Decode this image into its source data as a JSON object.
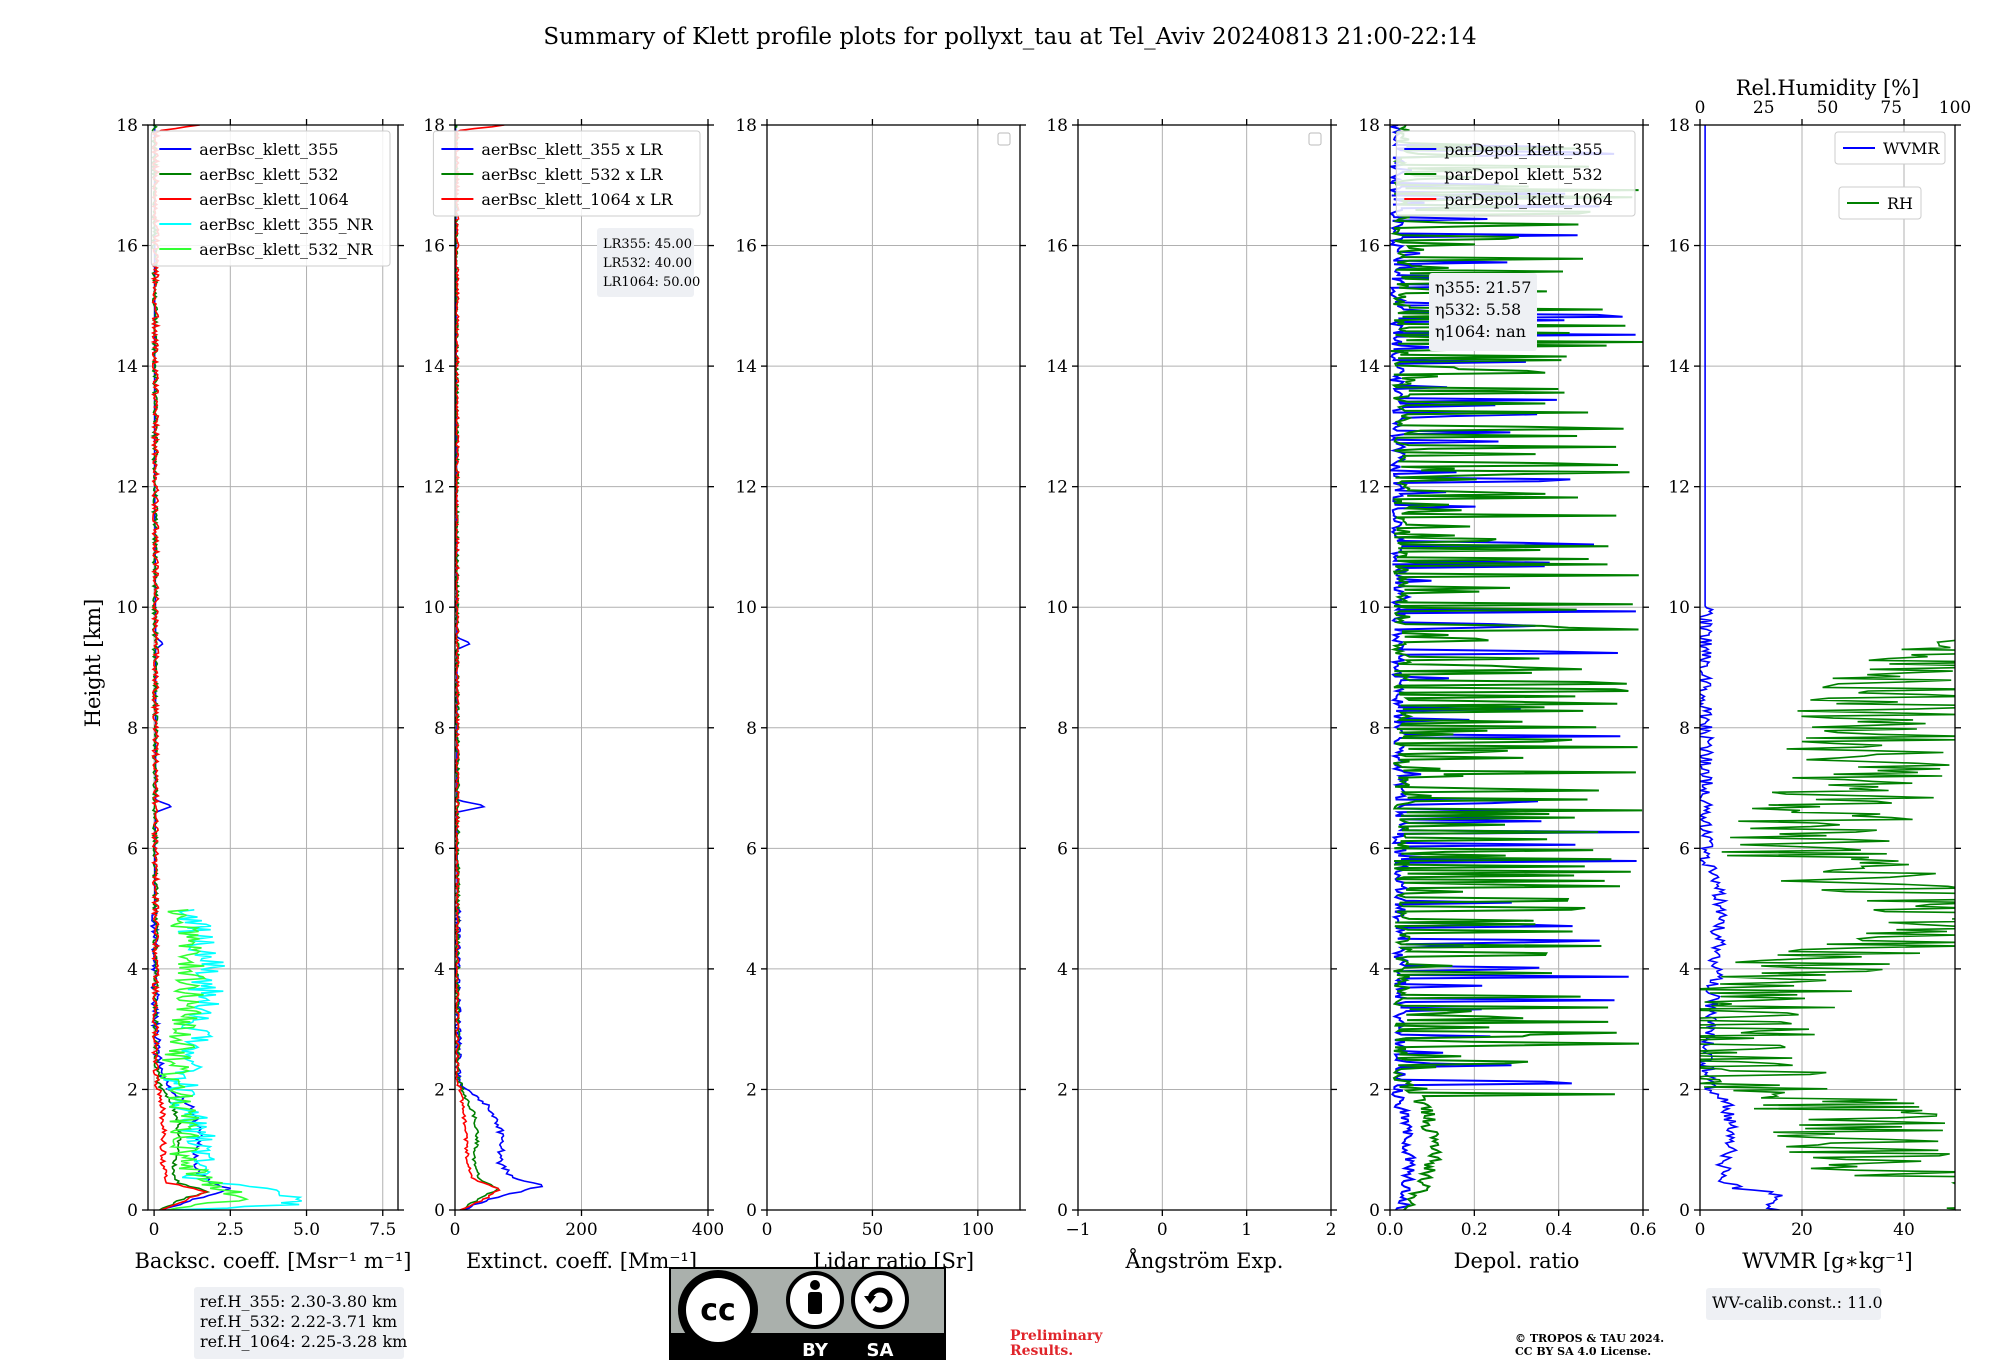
{
  "title": "Summary of Klett profile plots for pollyxt_tau at Tel_Aviv 20240813 21:00-22:14",
  "ylabel": "Height [km]",
  "chart_data": [
    {
      "type": "line",
      "id": "bsc",
      "xlabel": "Backsc. coeff. [Msr$^{-1}$ m$^{-1}$]",
      "xlabel_display": "Backsc. coeff. [Msr⁻¹ m⁻¹]",
      "xlim": [
        -0.2,
        8.0
      ],
      "xticks": [
        0,
        2.5,
        5.0,
        7.5
      ],
      "xticklabels": [
        "0",
        "2.5",
        "5.0",
        "7.5"
      ],
      "ylim": [
        0,
        18
      ],
      "grid": true,
      "legend_position": "top-right",
      "annotation": [
        "ref.H_355: 2.30-3.80 km",
        "ref.H_532: 2.22-3.71 km",
        "ref.H_1064: 2.25-3.28 km"
      ],
      "series": [
        {
          "name": "aerBsc_klett_355",
          "color": "#0000ff",
          "kind": "noisy",
          "profile": [
            [
              0,
              0.3
            ],
            [
              0.1,
              0.8
            ],
            [
              0.25,
              1.8
            ],
            [
              0.35,
              2.5
            ],
            [
              0.45,
              1.9
            ],
            [
              0.6,
              1.5
            ],
            [
              0.8,
              1.3
            ],
            [
              1.0,
              1.4
            ],
            [
              1.3,
              1.5
            ],
            [
              1.6,
              1.3
            ],
            [
              1.8,
              1.1
            ],
            [
              2.0,
              0.5
            ],
            [
              2.2,
              0.3
            ],
            [
              2.5,
              0.15
            ],
            [
              3.0,
              0.05
            ],
            [
              4.0,
              0.03
            ],
            [
              6.0,
              0.02
            ],
            [
              6.6,
              0.05
            ],
            [
              6.7,
              0.6
            ],
            [
              6.8,
              0.05
            ],
            [
              9.3,
              0.05
            ],
            [
              9.4,
              0.3
            ],
            [
              9.5,
              0.05
            ],
            [
              12,
              0.02
            ],
            [
              18,
              0.02
            ]
          ],
          "noise": 0.12,
          "noise_until": 5
        },
        {
          "name": "aerBsc_klett_532",
          "color": "#008000",
          "kind": "noisy",
          "profile": [
            [
              0,
              0.2
            ],
            [
              0.2,
              1.0
            ],
            [
              0.3,
              1.8
            ],
            [
              0.45,
              0.8
            ],
            [
              0.6,
              0.6
            ],
            [
              1.0,
              0.8
            ],
            [
              1.5,
              0.8
            ],
            [
              1.9,
              0.4
            ],
            [
              2.1,
              0.15
            ],
            [
              2.5,
              0.05
            ],
            [
              18,
              0.02
            ]
          ],
          "noise": 0.08,
          "noise_until": 18
        },
        {
          "name": "aerBsc_klett_1064",
          "color": "#ff0000",
          "kind": "noisy",
          "profile": [
            [
              0,
              0.2
            ],
            [
              0.2,
              1.2
            ],
            [
              0.3,
              1.8
            ],
            [
              0.45,
              0.5
            ],
            [
              0.7,
              0.3
            ],
            [
              1.5,
              0.3
            ],
            [
              1.9,
              0.2
            ],
            [
              2.2,
              0.05
            ],
            [
              17.9,
              0.05
            ],
            [
              18,
              1.5
            ]
          ],
          "noise": 0.1,
          "noise_until": 18
        },
        {
          "name": "aerBsc_klett_355_NR",
          "color": "#00ffff",
          "kind": "noisy",
          "profile": [
            [
              0,
              1.0
            ],
            [
              0.1,
              4.8
            ],
            [
              0.3,
              4.0
            ],
            [
              0.5,
              1.5
            ],
            [
              0.8,
              1.5
            ],
            [
              1.3,
              1.4
            ],
            [
              1.8,
              1.0
            ],
            [
              2.2,
              0.8
            ],
            [
              3.0,
              1.5
            ],
            [
              4.0,
              1.8
            ],
            [
              4.5,
              1.5
            ],
            [
              5.0,
              1.0
            ]
          ],
          "noise": 0.6,
          "noise_until": 5
        },
        {
          "name": "aerBsc_klett_532_NR",
          "color": "#33ff33",
          "kind": "noisy",
          "profile": [
            [
              0,
              0.8
            ],
            [
              0.2,
              3.0
            ],
            [
              0.4,
              2.0
            ],
            [
              0.8,
              1.0
            ],
            [
              1.5,
              1.0
            ],
            [
              2.2,
              0.6
            ],
            [
              3.0,
              1.0
            ],
            [
              4.0,
              1.3
            ],
            [
              5.0,
              0.8
            ]
          ],
          "noise": 0.5,
          "noise_until": 5
        }
      ]
    },
    {
      "type": "line",
      "id": "ext",
      "xlabel": "Extinct. coeff. [Mm$^{-1}$]",
      "xlabel_display": "Extinct. coeff. [Mm⁻¹]",
      "xlim": [
        0,
        400
      ],
      "xticks": [
        0,
        200,
        400
      ],
      "xticklabels": [
        "0",
        "200",
        "400"
      ],
      "ylim": [
        0,
        18
      ],
      "grid": true,
      "legend_position": "top-right",
      "annotation": [
        "LR355: 45.00",
        "LR532: 40.00",
        "LR1064: 50.00"
      ],
      "series": [
        {
          "name": "aerBsc_klett_355 x LR",
          "color": "#0000ff",
          "kind": "noisy",
          "profile": [
            [
              0,
              10
            ],
            [
              0.2,
              60
            ],
            [
              0.4,
              140
            ],
            [
              0.55,
              90
            ],
            [
              0.8,
              70
            ],
            [
              1.1,
              75
            ],
            [
              1.4,
              70
            ],
            [
              1.7,
              55
            ],
            [
              1.9,
              30
            ],
            [
              2.1,
              10
            ],
            [
              2.5,
              5
            ],
            [
              6.6,
              3
            ],
            [
              6.7,
              50
            ],
            [
              6.8,
              3
            ],
            [
              9.3,
              3
            ],
            [
              9.4,
              25
            ],
            [
              9.5,
              3
            ],
            [
              18,
              1
            ]
          ],
          "noise": 5,
          "noise_until": 5
        },
        {
          "name": "aerBsc_klett_532 x LR",
          "color": "#008000",
          "kind": "noisy",
          "profile": [
            [
              0,
              10
            ],
            [
              0.2,
              40
            ],
            [
              0.35,
              70
            ],
            [
              0.5,
              40
            ],
            [
              0.8,
              30
            ],
            [
              1.2,
              35
            ],
            [
              1.6,
              30
            ],
            [
              1.9,
              15
            ],
            [
              2.2,
              5
            ],
            [
              18,
              1
            ]
          ],
          "noise": 3,
          "noise_until": 18
        },
        {
          "name": "aerBsc_klett_1064 x LR",
          "color": "#ff0000",
          "kind": "noisy",
          "profile": [
            [
              0,
              10
            ],
            [
              0.2,
              50
            ],
            [
              0.35,
              70
            ],
            [
              0.5,
              30
            ],
            [
              0.8,
              20
            ],
            [
              1.5,
              15
            ],
            [
              1.9,
              10
            ],
            [
              2.2,
              3
            ],
            [
              17.9,
              3
            ],
            [
              18,
              80
            ]
          ],
          "noise": 3,
          "noise_until": 18
        }
      ]
    },
    {
      "type": "line",
      "id": "lr",
      "xlabel": "Lidar ratio [Sr]",
      "xlim": [
        0,
        120
      ],
      "xticks": [
        0,
        50,
        100
      ],
      "xticklabels": [
        "0",
        "50",
        "100"
      ],
      "ylim": [
        0,
        18
      ],
      "grid": true,
      "legend_position": "top-right",
      "series": []
    },
    {
      "type": "line",
      "id": "ae",
      "xlabel": "Ångström Exp.",
      "xlim": [
        -1,
        2
      ],
      "xticks": [
        -1,
        0,
        1,
        2
      ],
      "xticklabels": [
        "−1",
        "0",
        "1",
        "2"
      ],
      "ylim": [
        0,
        18
      ],
      "grid": true,
      "legend_position": "top-right",
      "series": []
    },
    {
      "type": "line",
      "id": "depol",
      "xlabel": "Depol. ratio",
      "xlim": [
        0,
        0.6
      ],
      "xticks": [
        0.0,
        0.2,
        0.4,
        0.6
      ],
      "xticklabels": [
        "0.0",
        "0.2",
        "0.4",
        "0.6"
      ],
      "ylim": [
        0,
        18
      ],
      "grid": true,
      "legend_position": "top-right",
      "annotation": [
        "η355: 21.57",
        "η532: 5.58",
        "η1064: nan"
      ],
      "series": [
        {
          "name": "parDepol_klett_355",
          "color": "#0000ff",
          "kind": "spiky",
          "profile": [
            [
              0,
              0.02
            ],
            [
              0.3,
              0.03
            ],
            [
              0.8,
              0.04
            ],
            [
              1.5,
              0.03
            ],
            [
              1.9,
              0.01
            ],
            [
              2.2,
              0.02
            ],
            [
              18,
              0.01
            ]
          ],
          "noise": 0.03,
          "spike_max": 0.6,
          "spike_prob": 0.18
        },
        {
          "name": "parDepol_klett_532",
          "color": "#008000",
          "kind": "spiky",
          "profile": [
            [
              0,
              0.04
            ],
            [
              0.5,
              0.08
            ],
            [
              1.0,
              0.1
            ],
            [
              1.6,
              0.08
            ],
            [
              1.9,
              0.06
            ],
            [
              2.1,
              0.02
            ],
            [
              18,
              0.02
            ]
          ],
          "noise": 0.04,
          "spike_max": 0.6,
          "spike_prob": 0.35
        },
        {
          "name": "parDepol_klett_1064",
          "color": "#ff0000",
          "kind": "empty",
          "profile": []
        }
      ]
    },
    {
      "type": "line",
      "id": "wv",
      "xlabel": "WVMR [$g*kg^{-1}$]",
      "xlabel_display": "WVMR [g∗kg⁻¹]",
      "xlim": [
        0,
        50
      ],
      "xticks": [
        0,
        20,
        40
      ],
      "xticklabels": [
        "0",
        "20",
        "40"
      ],
      "ylim": [
        0,
        18
      ],
      "grid": true,
      "top_axis": {
        "label": "Rel.Humidity [%]",
        "lim": [
          0,
          100
        ],
        "ticks": [
          "0",
          "25",
          "50",
          "75",
          "100"
        ]
      },
      "annotation": [
        "WV-calib.const.: 11.0"
      ],
      "series": [
        {
          "name": "WVMR",
          "color": "#0000ff",
          "kind": "noisy",
          "profile": [
            [
              0,
              15
            ],
            [
              0.1,
              14
            ],
            [
              0.3,
              15
            ],
            [
              0.35,
              8
            ],
            [
              0.5,
              4
            ],
            [
              0.8,
              5
            ],
            [
              1.2,
              7
            ],
            [
              1.5,
              6
            ],
            [
              1.8,
              5
            ],
            [
              2.0,
              2
            ],
            [
              2.5,
              1
            ],
            [
              4.0,
              3
            ],
            [
              5.0,
              4
            ],
            [
              5.5,
              3
            ],
            [
              5.8,
              1
            ],
            [
              18,
              1
            ]
          ],
          "noise": 1.5,
          "noise_until": 10
        },
        {
          "name": "RH",
          "color": "#008000",
          "kind": "noisy",
          "profile": [
            [
              0,
              65
            ],
            [
              0.3,
              75
            ],
            [
              0.5,
              60
            ],
            [
              0.6,
              40
            ],
            [
              0.9,
              35
            ],
            [
              1.3,
              32
            ],
            [
              1.6,
              30
            ],
            [
              1.9,
              20
            ],
            [
              2.1,
              10
            ],
            [
              2.5,
              6
            ],
            [
              3.0,
              8
            ],
            [
              3.5,
              12
            ],
            [
              4.0,
              20
            ],
            [
              4.5,
              40
            ],
            [
              5.0,
              50
            ],
            [
              5.5,
              30
            ],
            [
              6.0,
              20
            ],
            [
              7.0,
              30
            ],
            [
              8.0,
              35
            ],
            [
              9.0,
              40
            ],
            [
              9.4,
              60
            ],
            [
              9.8,
              90
            ]
          ],
          "noise": 18,
          "noise_until": 10
        }
      ]
    }
  ],
  "license": {
    "cc": "cc",
    "by": "BY",
    "sa": "SA"
  },
  "preliminary": [
    "Preliminary",
    "Results."
  ],
  "copyright": [
    "© TROPOS & TAU 2024.",
    "CC BY SA 4.0 License."
  ]
}
